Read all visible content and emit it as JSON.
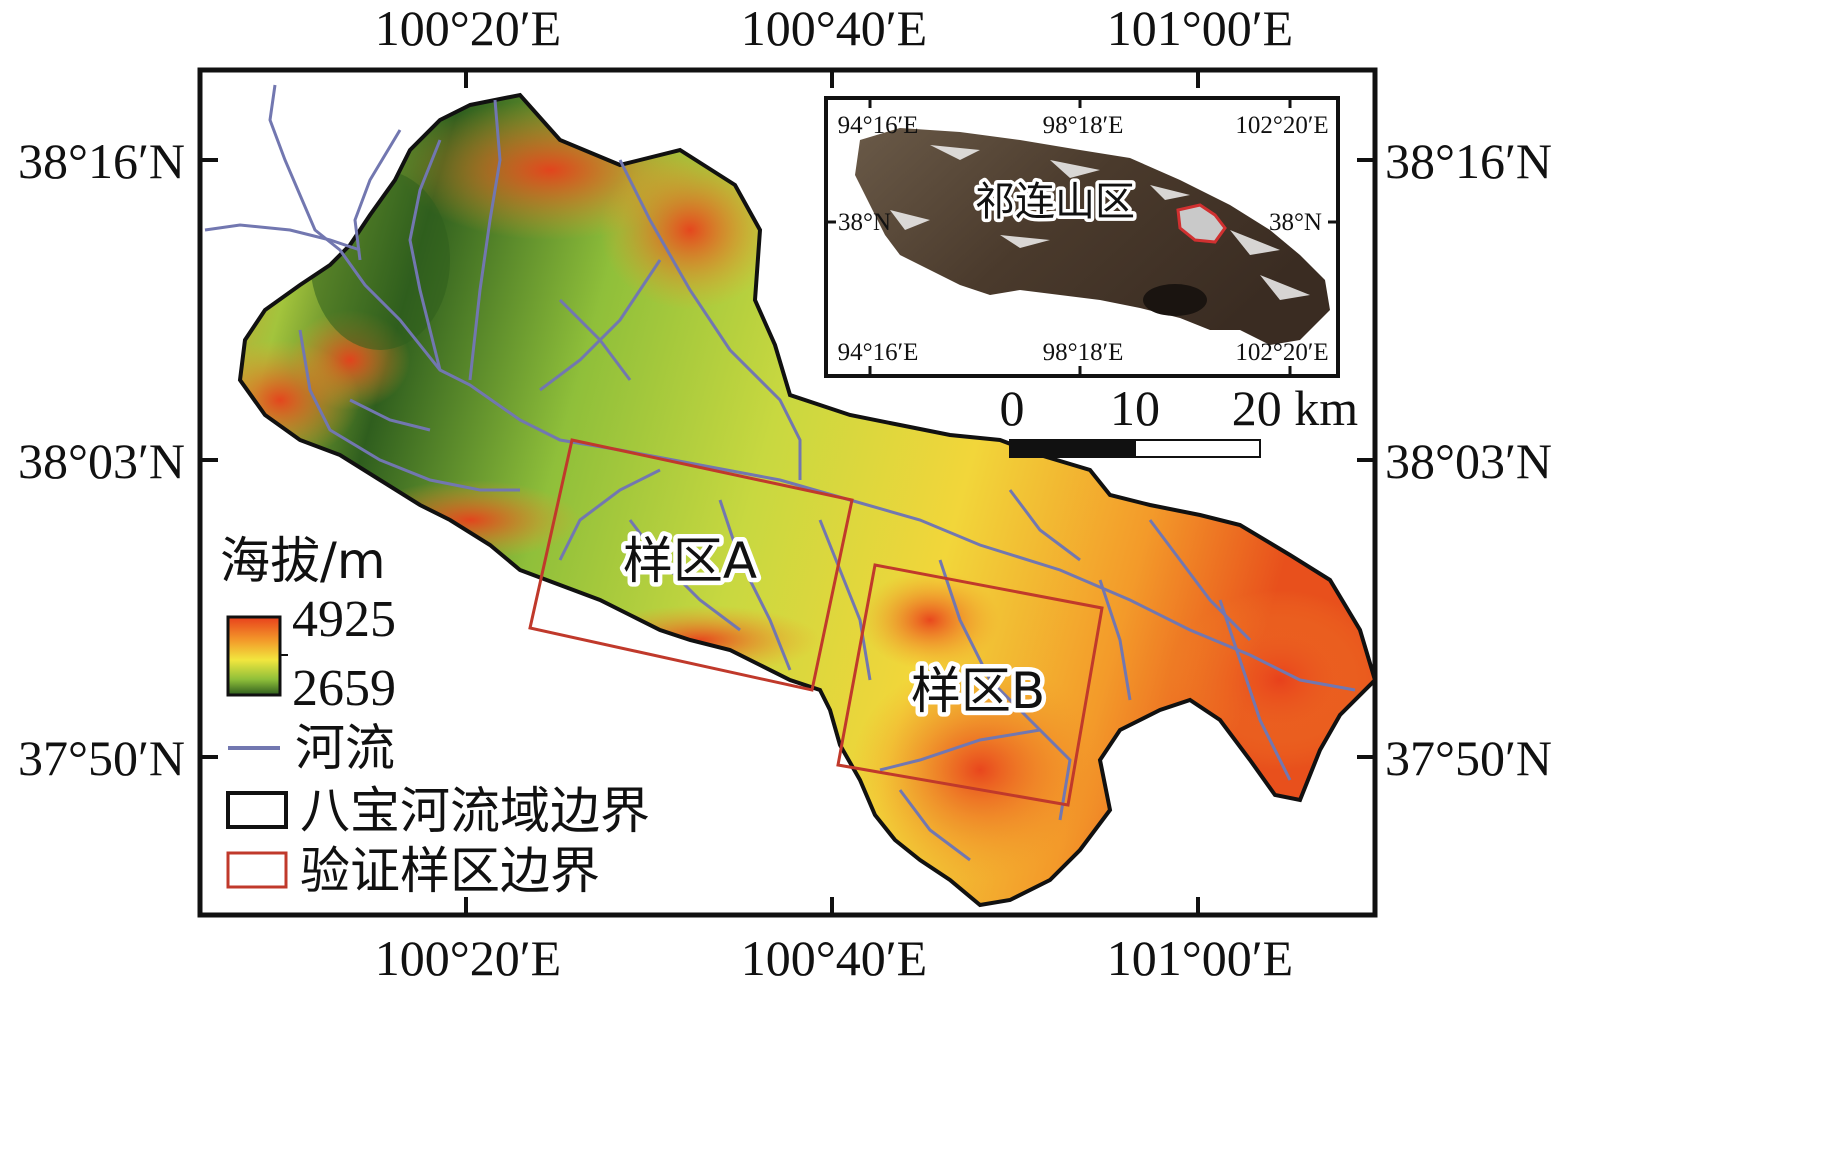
{
  "map": {
    "top_axis_labels": [
      "100°20′E",
      "100°40′E",
      "101°00′E"
    ],
    "bottom_axis_labels": [
      "100°20′E",
      "100°40′E",
      "101°00′E"
    ],
    "left_axis_labels": [
      "38°16′N",
      "38°03′N",
      "37°50′N"
    ],
    "right_axis_labels": [
      "38°16′N",
      "38°03′N",
      "37°50′N"
    ],
    "sample_area_a_label": "样区A",
    "sample_area_b_label": "样区B",
    "colors": {
      "elevation_high": "#e8401c",
      "elevation_mid": "#f0e640",
      "elevation_low": "#2f5e1e",
      "river": "#7277b0",
      "basin_boundary": "#111111",
      "sample_boundary": "#c0392b"
    }
  },
  "inset": {
    "region_label": "祁连山区",
    "top_labels": [
      "94°16′E",
      "98°18′E",
      "102°20′E"
    ],
    "bottom_labels": [
      "94°16′E",
      "98°18′E",
      "102°20′E"
    ],
    "left_label": "38°N",
    "right_label": "38°N"
  },
  "scale_bar": {
    "labels": [
      "0",
      "10",
      "20 km"
    ]
  },
  "legend": {
    "elevation_title": "海拔/m",
    "elevation_max": "4925",
    "elevation_min": "2659",
    "river_label": "河流",
    "basin_boundary_label": "八宝河流域边界",
    "sample_boundary_label": "验证样区边界"
  }
}
